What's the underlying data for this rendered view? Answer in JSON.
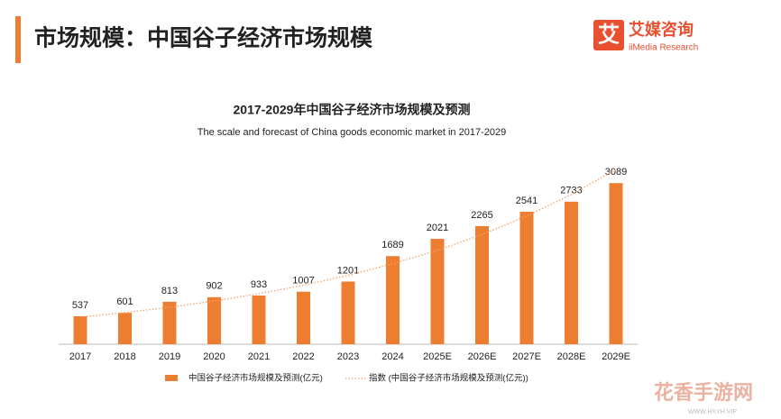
{
  "header": {
    "title": "市场规模：中国谷子经济市场规模",
    "logo_icon": "艾",
    "logo_name": "艾媒咨询",
    "logo_sub": "iiMedia Research"
  },
  "watermark": {
    "name": "花香手游网",
    "url": "WWW.HXYH.VIP"
  },
  "chart_data": {
    "type": "bar",
    "title": "2017-2029年中国谷子经济市场规模及预测",
    "subtitle": "The scale and forecast of China goods economic market in 2017-2029",
    "categories": [
      "2017",
      "2018",
      "2019",
      "2020",
      "2021",
      "2022",
      "2023",
      "2024",
      "2025E",
      "2026E",
      "2027E",
      "2028E",
      "2029E"
    ],
    "series": [
      {
        "name": "中国谷子经济市场规模及预测(亿元)",
        "color": "#ed7d31",
        "type": "bar",
        "values": [
          537,
          601,
          813,
          902,
          933,
          1007,
          1201,
          1689,
          2021,
          2265,
          2541,
          2733,
          3089
        ]
      },
      {
        "name": "指数 (中国谷子经济市场规模及预测(亿元))",
        "color": "#f4a46a",
        "type": "line",
        "values": [
          520,
          607,
          709,
          828,
          968,
          1130,
          1320,
          1542,
          1801,
          2104,
          2457,
          2870,
          3352
        ]
      }
    ]
  }
}
